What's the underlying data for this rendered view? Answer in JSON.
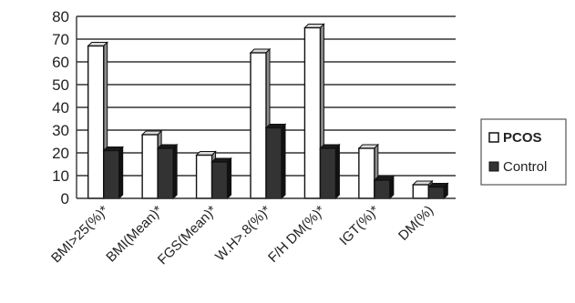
{
  "chart_data": {
    "type": "bar",
    "title": "",
    "xlabel": "",
    "ylabel": "",
    "ylim": [
      0,
      80
    ],
    "yticks": [
      "0",
      "10",
      "20",
      "30",
      "40",
      "50",
      "60",
      "70",
      "80"
    ],
    "grid": true,
    "legend_position": "right",
    "categories": [
      "BMI>25(%)*",
      "BMI(Mean)*",
      "FGS(Mean)*",
      "W.H>.8(%)*",
      "F/H DM(%)*",
      "IGT(%)*",
      "DM(%)"
    ],
    "series": [
      {
        "name": "PCOS",
        "color": "#ffffff",
        "values": [
          67,
          28,
          19,
          64,
          75,
          22,
          6
        ]
      },
      {
        "name": "Control",
        "color": "#333333",
        "values": [
          21,
          22,
          16,
          31,
          22,
          8,
          5
        ]
      }
    ]
  }
}
